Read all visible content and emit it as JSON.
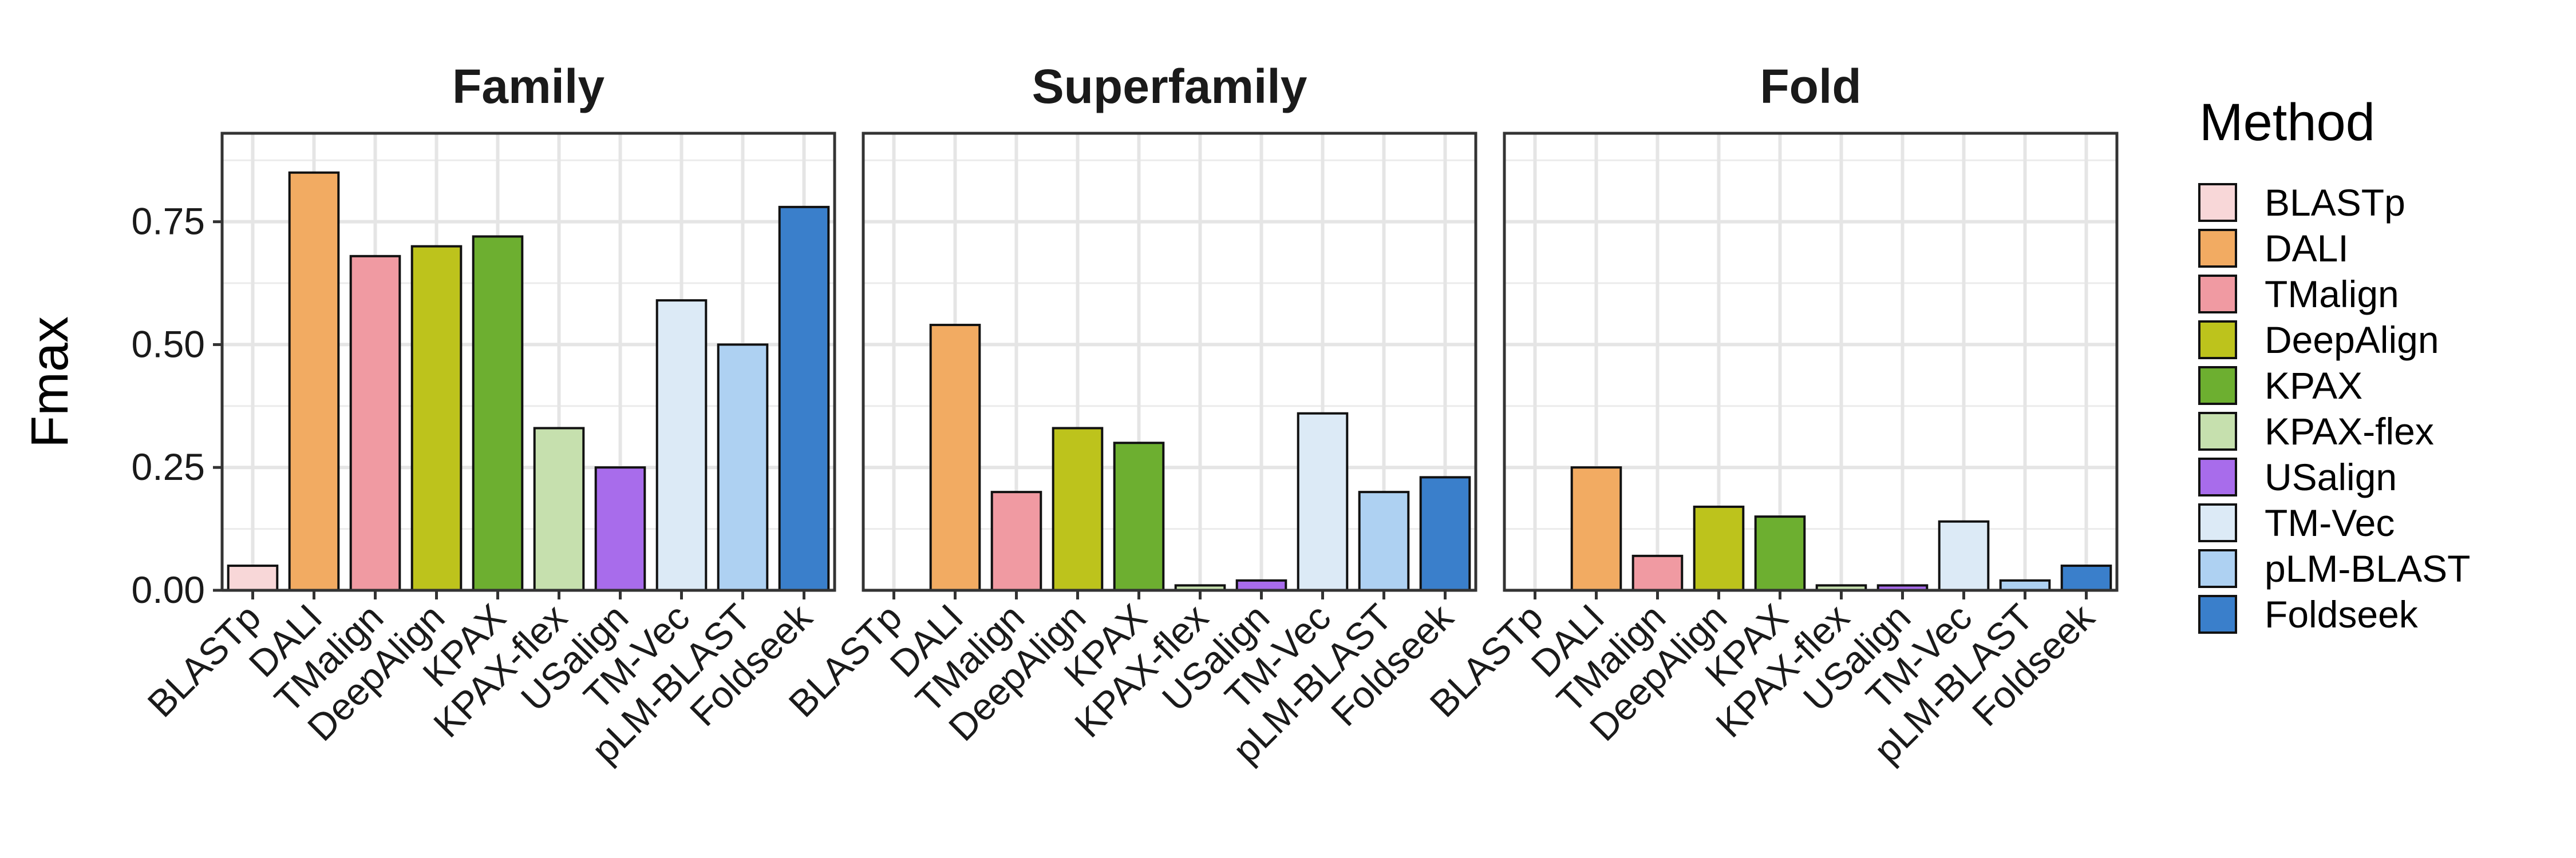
{
  "chart_data": {
    "type": "bar",
    "ylabel": "Fmax",
    "xlabel": "",
    "ylim": [
      0,
      0.93
    ],
    "yticks": [
      "0.00",
      "0.25",
      "0.50",
      "0.75"
    ],
    "ytick_values": [
      0,
      0.25,
      0.5,
      0.75
    ],
    "grid": true,
    "legend": {
      "title": "Method",
      "position": "right"
    },
    "categories": [
      "BLASTp",
      "DALI",
      "TMalign",
      "DeepAlign",
      "KPAX",
      "KPAX-flex",
      "USalign",
      "TM-Vec",
      "pLM-BLAST",
      "Foldseek"
    ],
    "colors": [
      "#F8D7D8",
      "#F2AB62",
      "#F09AA2",
      "#BDC31C",
      "#6DAF30",
      "#C6E0AE",
      "#A86CEB",
      "#DCEAF6",
      "#AED1F2",
      "#3A7FCB"
    ],
    "panels": [
      {
        "title": "Family",
        "values": [
          0.05,
          0.85,
          0.68,
          0.7,
          0.72,
          0.33,
          0.25,
          0.59,
          0.5,
          0.78
        ]
      },
      {
        "title": "Superfamily",
        "values": [
          0.0,
          0.54,
          0.2,
          0.33,
          0.3,
          0.01,
          0.02,
          0.36,
          0.2,
          0.23
        ]
      },
      {
        "title": "Fold",
        "values": [
          0.0,
          0.25,
          0.07,
          0.17,
          0.15,
          0.01,
          0.01,
          0.14,
          0.02,
          0.05
        ]
      }
    ]
  }
}
